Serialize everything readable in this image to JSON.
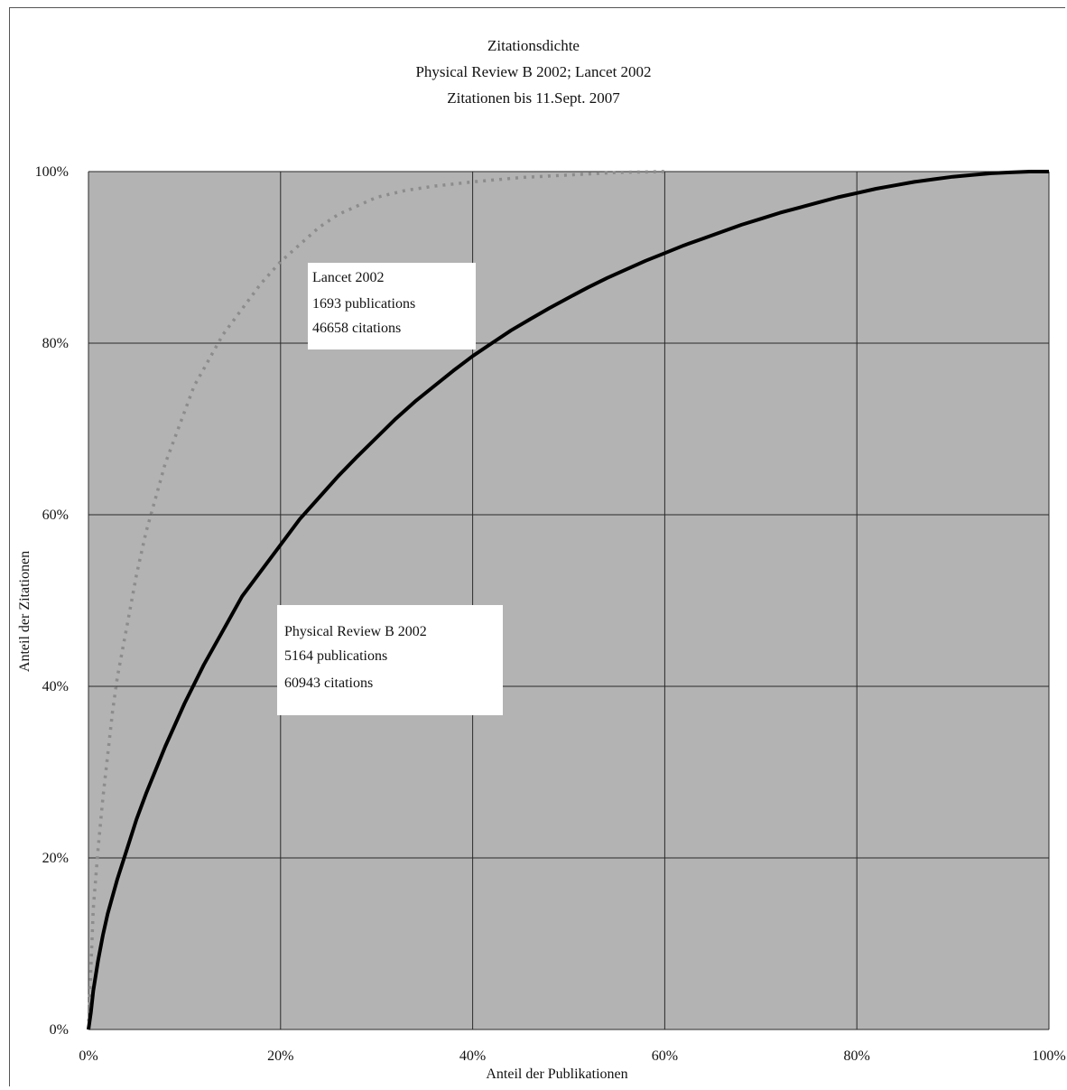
{
  "chart_data": {
    "type": "line",
    "title": "Zitationsdichte",
    "subtitle_lines": [
      "Physical Review B 2002; Lancet 2002",
      "Zitationen bis 11.Sept. 2007"
    ],
    "xlabel": "Anteil der Publikationen",
    "ylabel": "Anteil der Zitationen",
    "xlim": [
      0,
      100
    ],
    "ylim": [
      0,
      100
    ],
    "x_ticks": [
      "0%",
      "20%",
      "40%",
      "60%",
      "80%",
      "100%"
    ],
    "y_ticks": [
      "0%",
      "20%",
      "40%",
      "60%",
      "80%",
      "100%"
    ],
    "grid": true,
    "plot_background": "#b3b3b3",
    "series": [
      {
        "name": "Lancet 2002",
        "color": "#8c8c8c",
        "style": "dotted",
        "x": [
          0,
          0.5,
          1,
          1.5,
          2,
          2.5,
          3,
          4,
          5,
          6,
          7,
          8,
          9,
          10,
          11,
          12,
          13,
          14,
          15,
          16,
          18,
          20,
          22,
          24,
          26,
          28,
          30,
          33,
          36,
          40,
          45,
          50,
          55,
          60
        ],
        "y": [
          0,
          14,
          21,
          27,
          32,
          37,
          41,
          47,
          53,
          58,
          62,
          66,
          69,
          72,
          75,
          77,
          79,
          81,
          82.5,
          84,
          87,
          89.5,
          91.5,
          93.5,
          95,
          96,
          97,
          97.8,
          98.3,
          98.8,
          99.3,
          99.6,
          99.9,
          100
        ]
      },
      {
        "name": "Physical Review B 2002",
        "color": "#000000",
        "style": "solid",
        "x": [
          0,
          0.25,
          0.5,
          1,
          1.5,
          2,
          3,
          4,
          5,
          6,
          8,
          10,
          12,
          14,
          16,
          18,
          20,
          22,
          24,
          26,
          28,
          30,
          32,
          34,
          36,
          38,
          40,
          42,
          44,
          46,
          48,
          50,
          52,
          54,
          56,
          58,
          60,
          62,
          64,
          66,
          68,
          70,
          72,
          74,
          76,
          78,
          80,
          82,
          84,
          86,
          88,
          90,
          92,
          94,
          96,
          98,
          100
        ],
        "y": [
          0,
          2,
          4.5,
          8,
          11,
          13.5,
          17.5,
          21,
          24.5,
          27.5,
          33,
          38,
          42.5,
          46.5,
          50.5,
          53.5,
          56.5,
          59.5,
          62,
          64.5,
          66.8,
          69,
          71.2,
          73.2,
          75,
          76.8,
          78.5,
          80,
          81.5,
          82.8,
          84.1,
          85.3,
          86.5,
          87.6,
          88.6,
          89.6,
          90.5,
          91.4,
          92.2,
          93,
          93.8,
          94.5,
          95.2,
          95.8,
          96.4,
          97,
          97.5,
          98,
          98.4,
          98.8,
          99.1,
          99.4,
          99.6,
          99.8,
          99.9,
          100,
          100
        ]
      }
    ],
    "annotations": [
      {
        "series": "Lancet 2002",
        "lines": [
          "Lancet 2002",
          "1693 publications",
          "46658 citations"
        ]
      },
      {
        "series": "Physical Review B 2002",
        "lines": [
          "Physical Review B 2002",
          "5164 publications",
          "60943 citations"
        ]
      }
    ]
  }
}
